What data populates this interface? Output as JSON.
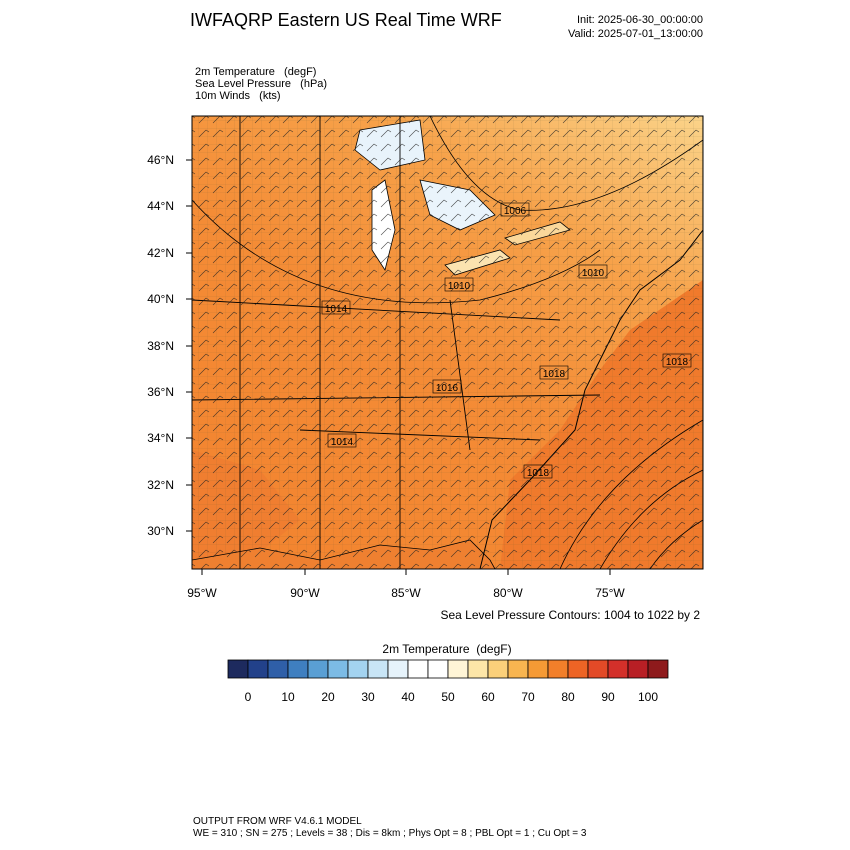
{
  "header": {
    "title": "IWFAQRP Eastern US Real Time WRF",
    "init": "Init: 2025-06-30_00:00:00",
    "valid": "Valid: 2025-07-01_13:00:00"
  },
  "fields": [
    "2m Temperature   (degF)",
    "Sea Level Pressure   (hPa)",
    "10m Winds   (kts)"
  ],
  "map": {
    "lat_labels": [
      "46°N",
      "44°N",
      "42°N",
      "40°N",
      "38°N",
      "36°N",
      "34°N",
      "32°N",
      "30°N"
    ],
    "lon_labels": [
      "95°W",
      "90°W",
      "85°W",
      "80°W",
      "75°W"
    ],
    "contour_labels": [
      "1006",
      "1010",
      "1010",
      "1014",
      "1018",
      "1016",
      "1018",
      "1014",
      "1018"
    ],
    "contour_note": "Sea Level Pressure Contours: 1004 to 1022 by 2"
  },
  "colorbar": {
    "title": "2m Temperature  (degF)",
    "colors": [
      "#1d2a5e",
      "#22418a",
      "#2f5fa8",
      "#3f7fc0",
      "#5a9fd4",
      "#7cbbe5",
      "#a3d3f0",
      "#c8e5f6",
      "#e6f3fb",
      "#ffffff",
      "#ffffff",
      "#fff5d6",
      "#fde6a8",
      "#fbd07a",
      "#f8b550",
      "#f59a35",
      "#f27f2a",
      "#ed6425",
      "#e34a27",
      "#d3302a",
      "#b81f25",
      "#8e1a1c"
    ],
    "ticks": [
      0,
      10,
      20,
      30,
      40,
      50,
      60,
      70,
      80,
      90,
      100
    ]
  },
  "footer": {
    "line1": "OUTPUT FROM WRF V4.6.1 MODEL",
    "line2": "WE = 310 ; SN = 275 ; Levels = 38 ; Dis = 8km ; Phys Opt = 8 ; PBL Opt = 1 ; Cu Opt = 3"
  }
}
